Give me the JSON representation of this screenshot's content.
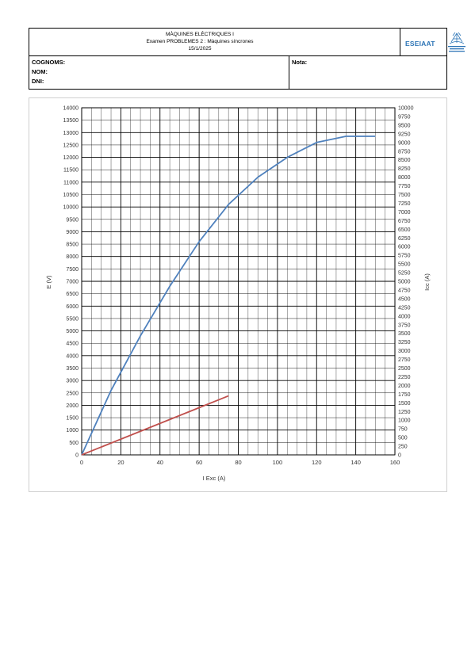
{
  "header": {
    "title": "MÀQUINES ELÈCTRIQUES I",
    "subtitle": "Examen PROBLEMES 2 : Màquines síncrones",
    "date": "15/1/2025",
    "logo_text": "ESEIAAT"
  },
  "form": {
    "cognoms_label": "COGNOMS:",
    "nom_label": "NOM:",
    "dni_label": "DNI:",
    "nota_label": "Nota:"
  },
  "colors": {
    "series_e": "#4f81bd",
    "series_icc": "#c0504d",
    "logo": "#2e75b6"
  },
  "chart_data": {
    "type": "line",
    "title": "",
    "xlabel": "I Exc (A)",
    "ylabel": "E (V)",
    "y2label": "Icc (A)",
    "xlim": [
      0,
      160
    ],
    "ylim": [
      0,
      14000
    ],
    "y2lim": [
      0,
      10000
    ],
    "x_ticks": [
      0,
      20,
      40,
      60,
      80,
      100,
      120,
      140,
      160
    ],
    "y_ticks": [
      0,
      500,
      1000,
      1500,
      2000,
      2500,
      3000,
      3500,
      4000,
      4500,
      5000,
      5500,
      6000,
      6500,
      7000,
      7500,
      8000,
      8500,
      9000,
      9500,
      10000,
      10500,
      11000,
      11500,
      12000,
      12500,
      13000,
      13500,
      14000
    ],
    "y2_ticks": [
      0,
      250,
      500,
      750,
      1000,
      1250,
      1500,
      1750,
      2000,
      2250,
      2500,
      2750,
      3000,
      3250,
      3500,
      3750,
      4000,
      4250,
      4500,
      4750,
      5000,
      5250,
      5500,
      5750,
      6000,
      6250,
      6500,
      6750,
      7000,
      7250,
      7500,
      7750,
      8000,
      8250,
      8500,
      8750,
      9000,
      9250,
      9500,
      9750,
      10000
    ],
    "grid": true,
    "legend": "none",
    "series": [
      {
        "axis": "left",
        "x": [
          0,
          15,
          30,
          45,
          60,
          75,
          90,
          105,
          120,
          135,
          150
        ],
        "values": [
          0,
          2600,
          4800,
          6800,
          8600,
          10100,
          11200,
          12000,
          12600,
          12850,
          12850
        ]
      },
      {
        "axis": "right",
        "x": [
          0,
          75
        ],
        "values": [
          0,
          1700
        ]
      }
    ]
  }
}
